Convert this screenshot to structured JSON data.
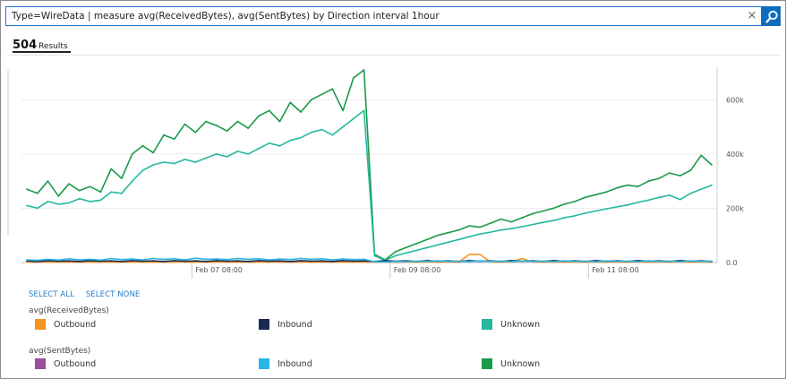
{
  "search": {
    "query": "Type=WireData | measure avg(ReceivedBytes), avg(SentBytes) by Direction interval 1hour",
    "clear_glyph": "×"
  },
  "results": {
    "count": "504",
    "label": "Results"
  },
  "chart_data": {
    "type": "line",
    "x_ticks": [
      "Feb 07 08:00",
      "Feb 09 08:00",
      "Feb 11 08:00"
    ],
    "y_ticks": [
      "600k",
      "400k",
      "200k",
      "0.0"
    ],
    "ylim": [
      0,
      720000
    ],
    "grid": true,
    "series": [
      {
        "name": "Unknown",
        "group": "avg(SentBytes)",
        "color": "#1a9a4a",
        "values": [
          270000,
          255000,
          300000,
          245000,
          290000,
          265000,
          280000,
          260000,
          345000,
          310000,
          400000,
          430000,
          405000,
          470000,
          455000,
          510000,
          480000,
          520000,
          505000,
          485000,
          520000,
          495000,
          540000,
          560000,
          520000,
          590000,
          555000,
          600000,
          620000,
          640000,
          560000,
          680000,
          710000,
          30000,
          10000,
          40000,
          55000,
          70000,
          85000,
          100000,
          110000,
          120000,
          135000,
          130000,
          145000,
          160000,
          150000,
          165000,
          180000,
          190000,
          200000,
          215000,
          225000,
          240000,
          250000,
          260000,
          275000,
          285000,
          280000,
          300000,
          310000,
          330000,
          320000,
          340000,
          395000,
          360000
        ]
      },
      {
        "name": "Unknown",
        "group": "avg(ReceivedBytes)",
        "color": "#24b8a0",
        "values": [
          210000,
          200000,
          225000,
          215000,
          220000,
          235000,
          225000,
          230000,
          260000,
          255000,
          300000,
          340000,
          360000,
          370000,
          365000,
          380000,
          370000,
          385000,
          400000,
          390000,
          410000,
          400000,
          420000,
          440000,
          430000,
          450000,
          460000,
          480000,
          490000,
          470000,
          500000,
          530000,
          560000,
          25000,
          8000,
          25000,
          35000,
          45000,
          55000,
          65000,
          75000,
          85000,
          95000,
          105000,
          112000,
          120000,
          125000,
          132000,
          140000,
          148000,
          155000,
          165000,
          172000,
          182000,
          190000,
          198000,
          205000,
          212000,
          222000,
          230000,
          240000,
          248000,
          232000,
          255000,
          270000,
          285000
        ]
      },
      {
        "name": "Outbound",
        "group": "avg(ReceivedBytes)",
        "color": "#f7941d",
        "values": [
          2000,
          2000,
          2000,
          2000,
          2000,
          2000,
          2000,
          2000,
          2000,
          2000,
          2000,
          2000,
          2000,
          2000,
          2000,
          2000,
          2000,
          2000,
          2000,
          2000,
          2000,
          2000,
          2000,
          2000,
          2000,
          2000,
          2000,
          2000,
          2000,
          2000,
          2000,
          2000,
          2000,
          2000,
          2000,
          2000,
          2000,
          2000,
          2000,
          2000,
          2000,
          2000,
          30000,
          30000,
          2000,
          2000,
          2000,
          15000,
          2000,
          2000,
          2000,
          2000,
          2000,
          2000,
          2000,
          2000,
          2000,
          2000,
          2000,
          2000,
          2000,
          2000,
          2000,
          2000,
          2000,
          2000
        ]
      },
      {
        "name": "Inbound",
        "group": "avg(ReceivedBytes)",
        "color": "#1b2a52",
        "values": [
          6000,
          4000,
          7000,
          5000,
          6000,
          4000,
          7000,
          5000,
          6000,
          4000,
          7000,
          5000,
          6000,
          4000,
          7000,
          5000,
          6000,
          4000,
          7000,
          5000,
          6000,
          4000,
          7000,
          5000,
          6000,
          4000,
          7000,
          5000,
          6000,
          4000,
          7000,
          5000,
          6000,
          4000,
          7000,
          5000,
          6000,
          4000,
          7000,
          5000,
          6000,
          4000,
          7000,
          5000,
          6000,
          4000,
          7000,
          5000,
          6000,
          4000,
          7000,
          5000,
          6000,
          4000,
          7000,
          5000,
          6000,
          4000,
          7000,
          5000,
          6000,
          4000,
          7000,
          5000,
          6000,
          4000
        ]
      },
      {
        "name": "Inbound",
        "group": "avg(SentBytes)",
        "color": "#29b5e8",
        "values": [
          10000,
          8000,
          12000,
          9000,
          14000,
          10000,
          12000,
          9000,
          15000,
          11000,
          13000,
          10000,
          15000,
          12000,
          14000,
          10000,
          16000,
          12000,
          13000,
          11000,
          15000,
          12000,
          14000,
          10000,
          13000,
          11000,
          15000,
          12000,
          14000,
          10000,
          13000,
          11000,
          12000,
          3000,
          2000,
          4000,
          3000,
          5000,
          4000,
          6000,
          4000,
          5000,
          3000,
          6000,
          4000,
          5000,
          3000,
          6000,
          4000,
          5000,
          3000,
          6000,
          4000,
          5000,
          3000,
          6000,
          4000,
          5000,
          3000,
          6000,
          4000,
          5000,
          3000,
          6000,
          4000,
          5000
        ]
      }
    ]
  },
  "controls": {
    "select_all": "SELECT ALL",
    "select_none": "SELECT NONE"
  },
  "legend": {
    "received": {
      "title": "avg(ReceivedBytes)",
      "items": [
        {
          "label": "Outbound",
          "color": "#f7941d"
        },
        {
          "label": "Inbound",
          "color": "#1b2a52"
        },
        {
          "label": "Unknown",
          "color": "#24b8a0"
        }
      ]
    },
    "sent": {
      "title": "avg(SentBytes)",
      "items": [
        {
          "label": "Outbound",
          "color": "#9b4f9e"
        },
        {
          "label": "Inbound",
          "color": "#29b5e8"
        },
        {
          "label": "Unknown",
          "color": "#1a9a4a"
        }
      ]
    }
  }
}
